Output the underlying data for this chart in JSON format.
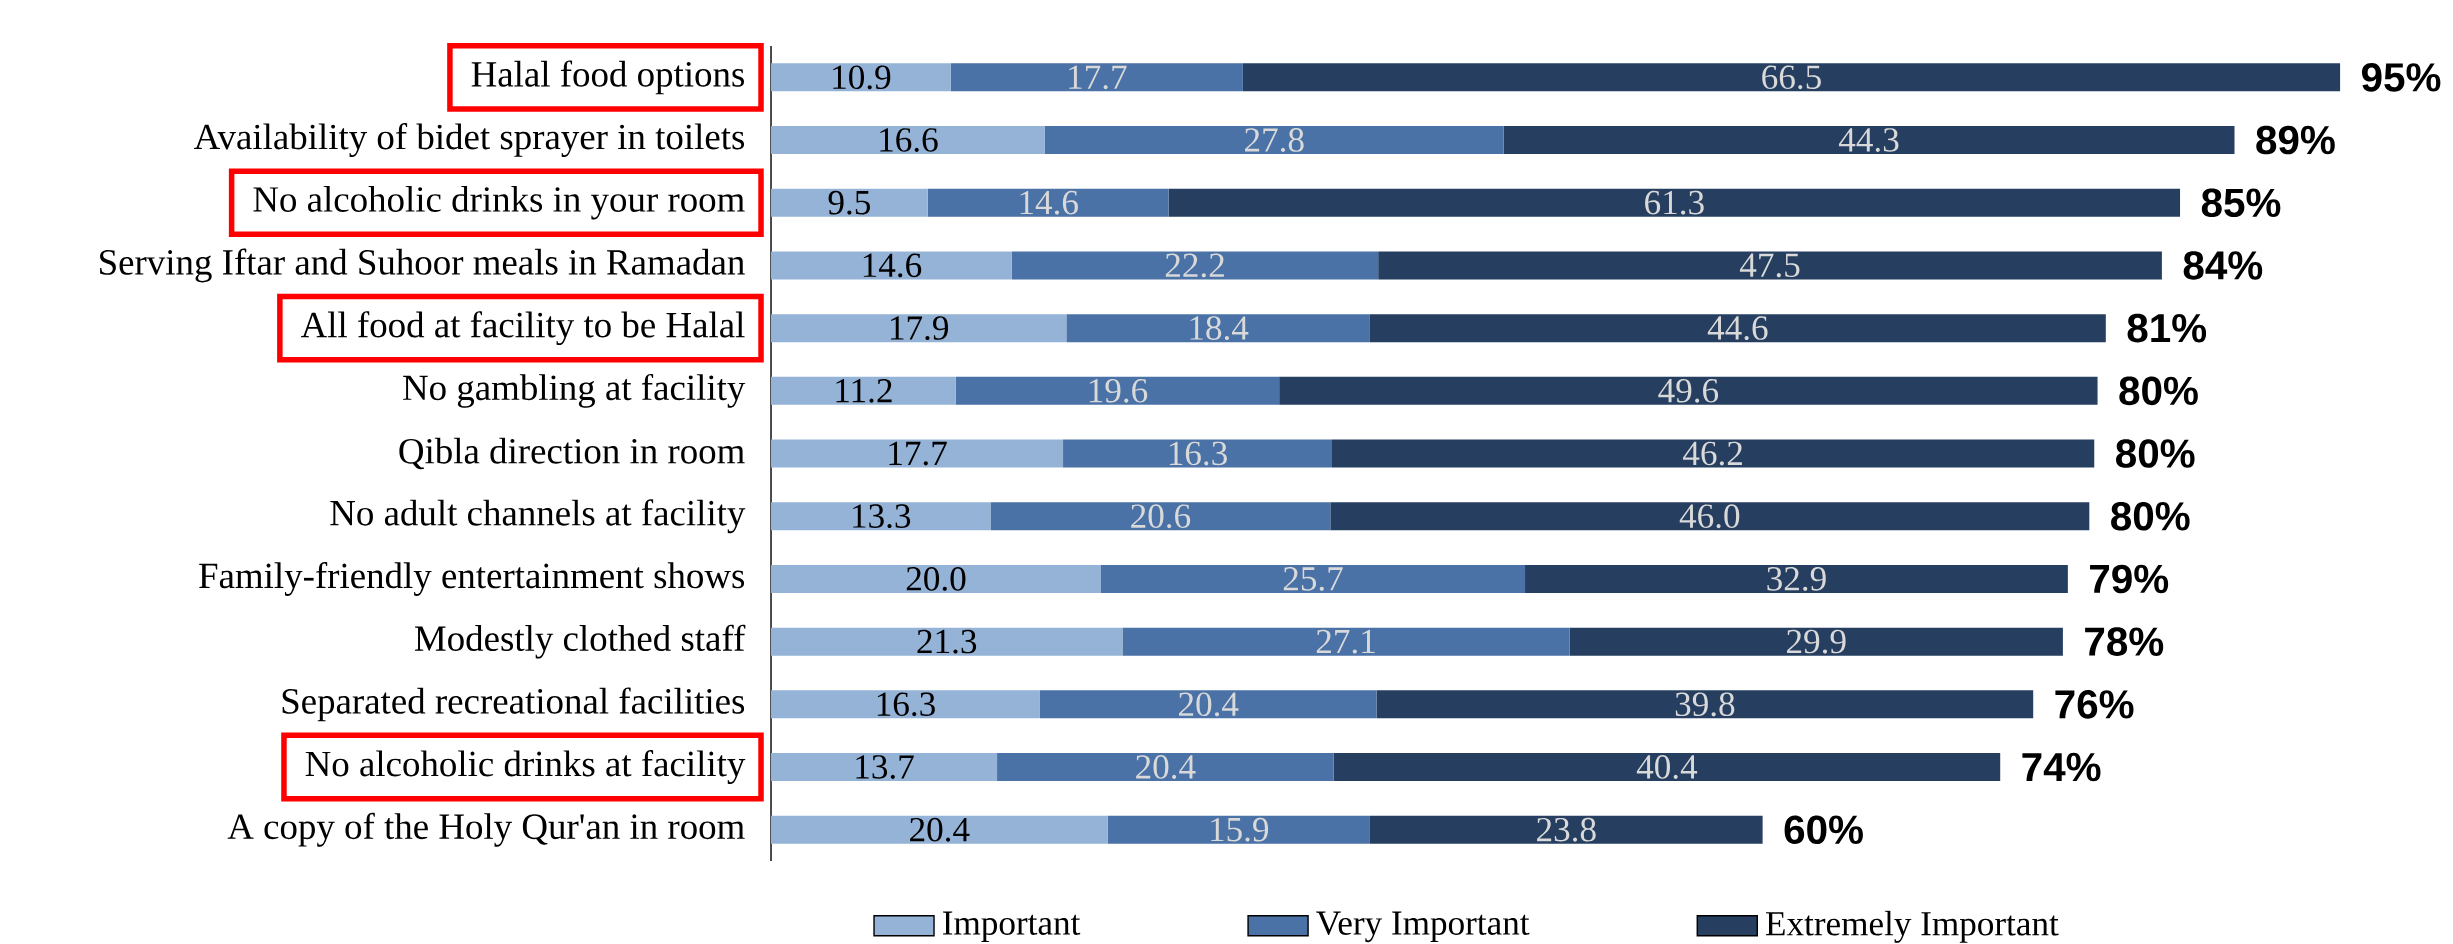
{
  "chart_data": {
    "type": "bar",
    "orientation": "horizontal",
    "stacked": true,
    "legend": "bottom",
    "categories": [
      "Halal food options",
      "Availability of bidet sprayer in toilets",
      "No alcoholic drinks in your room",
      "Serving Iftar and Suhoor meals in Ramadan",
      "All food at facility to be Halal",
      "No gambling at facility",
      "Qibla direction in room",
      "No adult channels at facility",
      "Family-friendly entertainment shows",
      "Modestly clothed staff",
      "Separated recreational facilities",
      "No alcoholic drinks at facility",
      "A copy of the Holy Qur'an in room"
    ],
    "series": [
      {
        "name": "Important",
        "color": "#95b3d7",
        "values": [
          10.9,
          16.6,
          9.5,
          14.6,
          17.9,
          11.2,
          17.7,
          13.3,
          20.0,
          21.3,
          16.3,
          13.7,
          20.4
        ],
        "value_labels": [
          "10.9",
          "16.6",
          "9.5",
          "14.6",
          "17.9",
          "11.2",
          "17.7",
          "13.3",
          "20.0",
          "21.3",
          "16.3",
          "13.7",
          "20.4"
        ]
      },
      {
        "name": "Very Important",
        "color": "#4a72a6",
        "values": [
          17.7,
          27.8,
          14.6,
          22.2,
          18.4,
          19.6,
          16.3,
          20.6,
          25.7,
          27.1,
          20.4,
          20.4,
          15.9
        ],
        "value_labels": [
          "17.7",
          "27.8",
          "14.6",
          "22.2",
          "18.4",
          "19.6",
          "16.3",
          "20.6",
          "25.7",
          "27.1",
          "20.4",
          "20.4",
          "15.9"
        ]
      },
      {
        "name": "Extremely  Important",
        "color": "#263f61",
        "values": [
          66.5,
          44.3,
          61.3,
          47.5,
          44.6,
          49.6,
          46.2,
          46.0,
          32.9,
          29.9,
          39.8,
          40.4,
          23.8
        ],
        "value_labels": [
          "66.5",
          "44.3",
          "61.3",
          "47.5",
          "44.6",
          "49.6",
          "46.2",
          "46.0",
          "32.9",
          "29.9",
          "39.8",
          "40.4",
          "23.8"
        ]
      }
    ],
    "totals": [
      "95%",
      "89%",
      "85%",
      "84%",
      "81%",
      "80%",
      "80%",
      "80%",
      "79%",
      "78%",
      "76%",
      "74%",
      "60%"
    ]
  }
}
